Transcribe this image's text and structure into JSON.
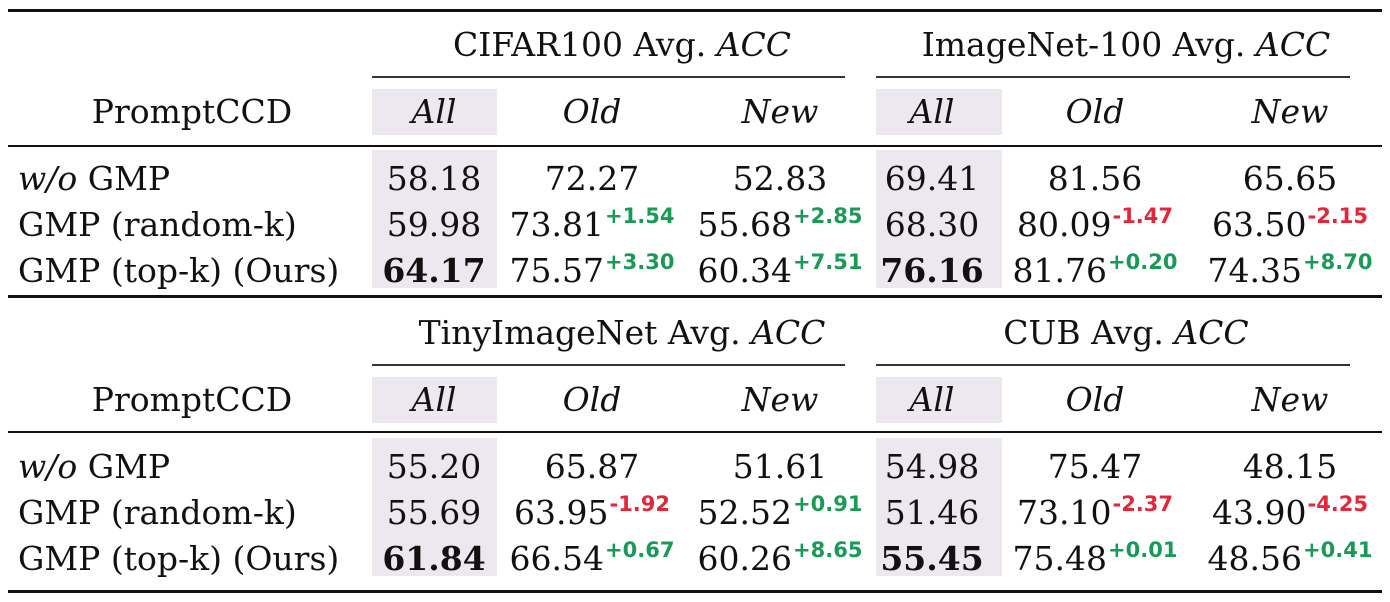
{
  "row_header": "PromptCCD",
  "sub_headers": [
    "All",
    "Old",
    "New"
  ],
  "panels": [
    {
      "groups": [
        {
          "label_prefix": "CIFAR100 Avg. ",
          "label_metric": "ACC"
        },
        {
          "label_prefix": "ImageNet-100 Avg. ",
          "label_metric": "ACC"
        }
      ],
      "rows": [
        {
          "label_prefix": "w/o",
          "label_rest": " GMP",
          "cells": [
            {
              "v": "58.18",
              "d": "",
              "s": ""
            },
            {
              "v": "72.27",
              "d": "",
              "s": ""
            },
            {
              "v": "52.83",
              "d": "",
              "s": ""
            },
            {
              "v": "69.41",
              "d": "",
              "s": ""
            },
            {
              "v": "81.56",
              "d": "",
              "s": ""
            },
            {
              "v": "65.65",
              "d": "",
              "s": ""
            }
          ]
        },
        {
          "label_prefix": "",
          "label_rest": "GMP (random-k)",
          "cells": [
            {
              "v": "59.98",
              "d": "",
              "s": ""
            },
            {
              "v": "73.81",
              "d": "+1.54",
              "s": "pos"
            },
            {
              "v": "55.68",
              "d": "+2.85",
              "s": "pos"
            },
            {
              "v": "68.30",
              "d": "",
              "s": ""
            },
            {
              "v": "80.09",
              "d": "-1.47",
              "s": "neg"
            },
            {
              "v": "63.50",
              "d": "-2.15",
              "s": "neg"
            }
          ]
        },
        {
          "label_prefix": "",
          "label_rest": "GMP (top-k) (Ours)",
          "cells": [
            {
              "v": "64.17",
              "d": "",
              "s": "",
              "bold": true
            },
            {
              "v": "75.57",
              "d": "+3.30",
              "s": "pos"
            },
            {
              "v": "60.34",
              "d": "+7.51",
              "s": "pos"
            },
            {
              "v": "76.16",
              "d": "",
              "s": "",
              "bold": true
            },
            {
              "v": "81.76",
              "d": "+0.20",
              "s": "pos"
            },
            {
              "v": "74.35",
              "d": "+8.70",
              "s": "pos"
            }
          ]
        }
      ]
    },
    {
      "groups": [
        {
          "label_prefix": "TinyImageNet Avg. ",
          "label_metric": "ACC"
        },
        {
          "label_prefix": "CUB Avg. ",
          "label_metric": "ACC"
        }
      ],
      "rows": [
        {
          "label_prefix": "w/o",
          "label_rest": " GMP",
          "cells": [
            {
              "v": "55.20",
              "d": "",
              "s": ""
            },
            {
              "v": "65.87",
              "d": "",
              "s": ""
            },
            {
              "v": "51.61",
              "d": "",
              "s": ""
            },
            {
              "v": "54.98",
              "d": "",
              "s": ""
            },
            {
              "v": "75.47",
              "d": "",
              "s": ""
            },
            {
              "v": "48.15",
              "d": "",
              "s": ""
            }
          ]
        },
        {
          "label_prefix": "",
          "label_rest": "GMP (random-k)",
          "cells": [
            {
              "v": "55.69",
              "d": "",
              "s": ""
            },
            {
              "v": "63.95",
              "d": "-1.92",
              "s": "neg"
            },
            {
              "v": "52.52",
              "d": "+0.91",
              "s": "pos"
            },
            {
              "v": "51.46",
              "d": "",
              "s": ""
            },
            {
              "v": "73.10",
              "d": "-2.37",
              "s": "neg"
            },
            {
              "v": "43.90",
              "d": "-4.25",
              "s": "neg"
            }
          ]
        },
        {
          "label_prefix": "",
          "label_rest": "GMP (top-k) (Ours)",
          "cells": [
            {
              "v": "61.84",
              "d": "",
              "s": "",
              "bold": true
            },
            {
              "v": "66.54",
              "d": "+0.67",
              "s": "pos"
            },
            {
              "v": "60.26",
              "d": "+8.65",
              "s": "pos"
            },
            {
              "v": "55.45",
              "d": "",
              "s": "",
              "bold": true
            },
            {
              "v": "75.48",
              "d": "+0.01",
              "s": "pos"
            },
            {
              "v": "48.56",
              "d": "+0.41",
              "s": "pos"
            }
          ]
        }
      ]
    }
  ],
  "colors": {
    "positive": "#1a9a57",
    "negative": "#e3263a",
    "all_column_shade": "#ede8ef"
  }
}
